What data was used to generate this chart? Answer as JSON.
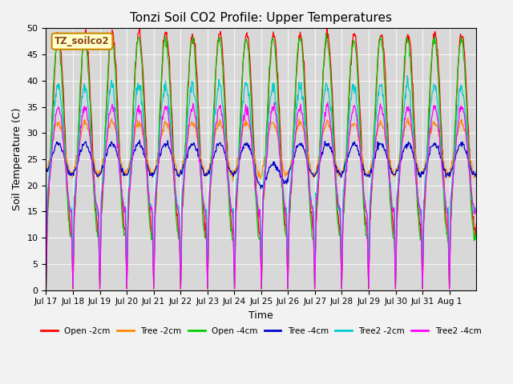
{
  "title": "Tonzi Soil CO2 Profile: Upper Temperatures",
  "xlabel": "Time",
  "ylabel": "Soil Temperature (C)",
  "ylim": [
    0,
    50
  ],
  "yticks": [
    0,
    5,
    10,
    15,
    20,
    25,
    30,
    35,
    40,
    45,
    50
  ],
  "label_box": "TZ_soilco2",
  "series": [
    {
      "name": "Open -2cm",
      "color": "#ff0000"
    },
    {
      "name": "Tree -2cm",
      "color": "#ff8800"
    },
    {
      "name": "Open -4cm",
      "color": "#00cc00"
    },
    {
      "name": "Tree -4cm",
      "color": "#0000cc"
    },
    {
      "name": "Tree2 -2cm",
      "color": "#00cccc"
    },
    {
      "name": "Tree2 -4cm",
      "color": "#ff00ff"
    }
  ],
  "xtick_positions": [
    0,
    1,
    2,
    3,
    4,
    5,
    6,
    7,
    8,
    9,
    10,
    11,
    12,
    13,
    14,
    15
  ],
  "xtick_labels": [
    "Jul 17",
    "Jul 18",
    "Jul 19",
    "Jul 20",
    "Jul 21",
    "Jul 22",
    "Jul 23",
    "Jul 24",
    "Jul 25",
    "Jul 26",
    "Jul 27",
    "Jul 28",
    "Jul 29",
    "Jul 30",
    "Jul 31",
    "Aug 1"
  ],
  "n_days": 16,
  "pts_per_day": 48
}
